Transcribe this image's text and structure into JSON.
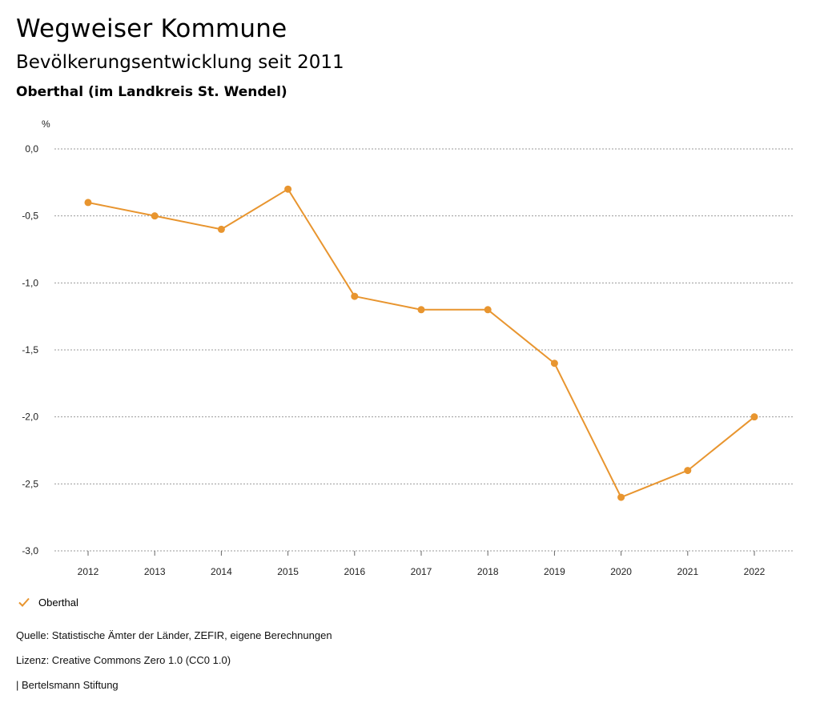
{
  "header": {
    "title": "Wegweiser Kommune",
    "subtitle": "Bevölkerungsentwicklung seit 2011",
    "region": "Oberthal (im Landkreis St. Wendel)"
  },
  "chart_data": {
    "type": "line",
    "title": "Bevölkerungsentwicklung seit 2011",
    "ylabel": "%",
    "xlabel": "",
    "ylim": [
      -3.0,
      0.0
    ],
    "yticks": [
      0.0,
      -0.5,
      -1.0,
      -1.5,
      -2.0,
      -2.5,
      -3.0
    ],
    "ytick_labels": [
      "0,0",
      "-0,5",
      "-1,0",
      "-1,5",
      "-2,0",
      "-2,5",
      "-3,0"
    ],
    "grid": true,
    "legend_position": "bottom-left",
    "categories": [
      "2012",
      "2013",
      "2014",
      "2015",
      "2016",
      "2017",
      "2018",
      "2019",
      "2020",
      "2021",
      "2022"
    ],
    "series": [
      {
        "name": "Oberthal",
        "color": "#E8952F",
        "values": [
          -0.4,
          -0.5,
          -0.6,
          -0.3,
          -1.1,
          -1.2,
          -1.2,
          -1.6,
          -2.6,
          -2.4,
          -2.0
        ]
      }
    ]
  },
  "legend": {
    "label": "Oberthal",
    "icon": "check-icon"
  },
  "footer": {
    "source": "Quelle: Statistische Ämter der Länder, ZEFIR, eigene Berechnungen",
    "license": "Lizenz: Creative Commons Zero 1.0 (CC0 1.0)",
    "publisher": "| Bertelsmann Stiftung"
  }
}
